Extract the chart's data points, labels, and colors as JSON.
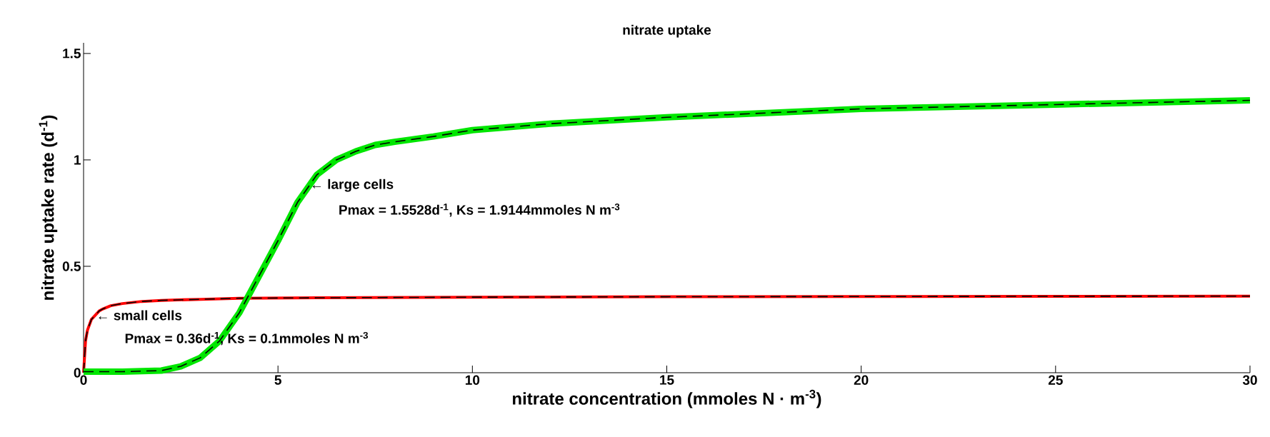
{
  "chart_data": {
    "type": "line",
    "title": "nitrate uptake",
    "xlabel": "nitrate concentration (mmoles N · m$^{-3}$)",
    "ylabel": "nitrate uptake rate (d$^{-1}$)",
    "xlim": [
      0,
      30
    ],
    "ylim": [
      0,
      1.55
    ],
    "xticks": [
      0,
      5,
      10,
      15,
      20,
      25,
      30
    ],
    "yticks": [
      0,
      0.5,
      1,
      1.5
    ],
    "grid": false,
    "series": [
      {
        "color": "#ff0000",
        "x": [
          0,
          0.05,
          0.1,
          0.2,
          0.3,
          0.4,
          0.5,
          0.7,
          1,
          1.5,
          2,
          3,
          4,
          6,
          10,
          15,
          20,
          25,
          30
        ],
        "values": [
          0,
          0.15,
          0.2,
          0.25,
          0.27,
          0.29,
          0.3,
          0.315,
          0.325,
          0.335,
          0.34,
          0.345,
          0.35,
          0.352,
          0.355,
          0.357,
          0.358,
          0.359,
          0.36
        ]
      },
      {
        "color": "#00e600",
        "x": [
          0,
          1,
          2,
          2.5,
          3,
          3.5,
          4,
          4.5,
          5,
          5.5,
          6,
          6.5,
          7,
          7.5,
          8,
          9,
          10,
          12,
          15,
          20,
          25,
          30
        ],
        "values": [
          0.005,
          0.005,
          0.01,
          0.03,
          0.07,
          0.15,
          0.28,
          0.45,
          0.62,
          0.8,
          0.93,
          1.0,
          1.04,
          1.07,
          1.085,
          1.11,
          1.14,
          1.17,
          1.2,
          1.24,
          1.26,
          1.28
        ]
      }
    ],
    "annotations": [
      {
        "text": "← small cells",
        "x": 0.3,
        "y": 0.27
      },
      "Pmax = 0.36d$^{-1}$, Ks = 0.1mmoles N m$^{-3}$",
      {
        "text": "← large cells",
        "x": 5.8,
        "y": 0.88
      },
      "Pmax = 1.5528d$^{-1}$, Ks = 1.9144mmoles N m$^{-3}$"
    ]
  }
}
